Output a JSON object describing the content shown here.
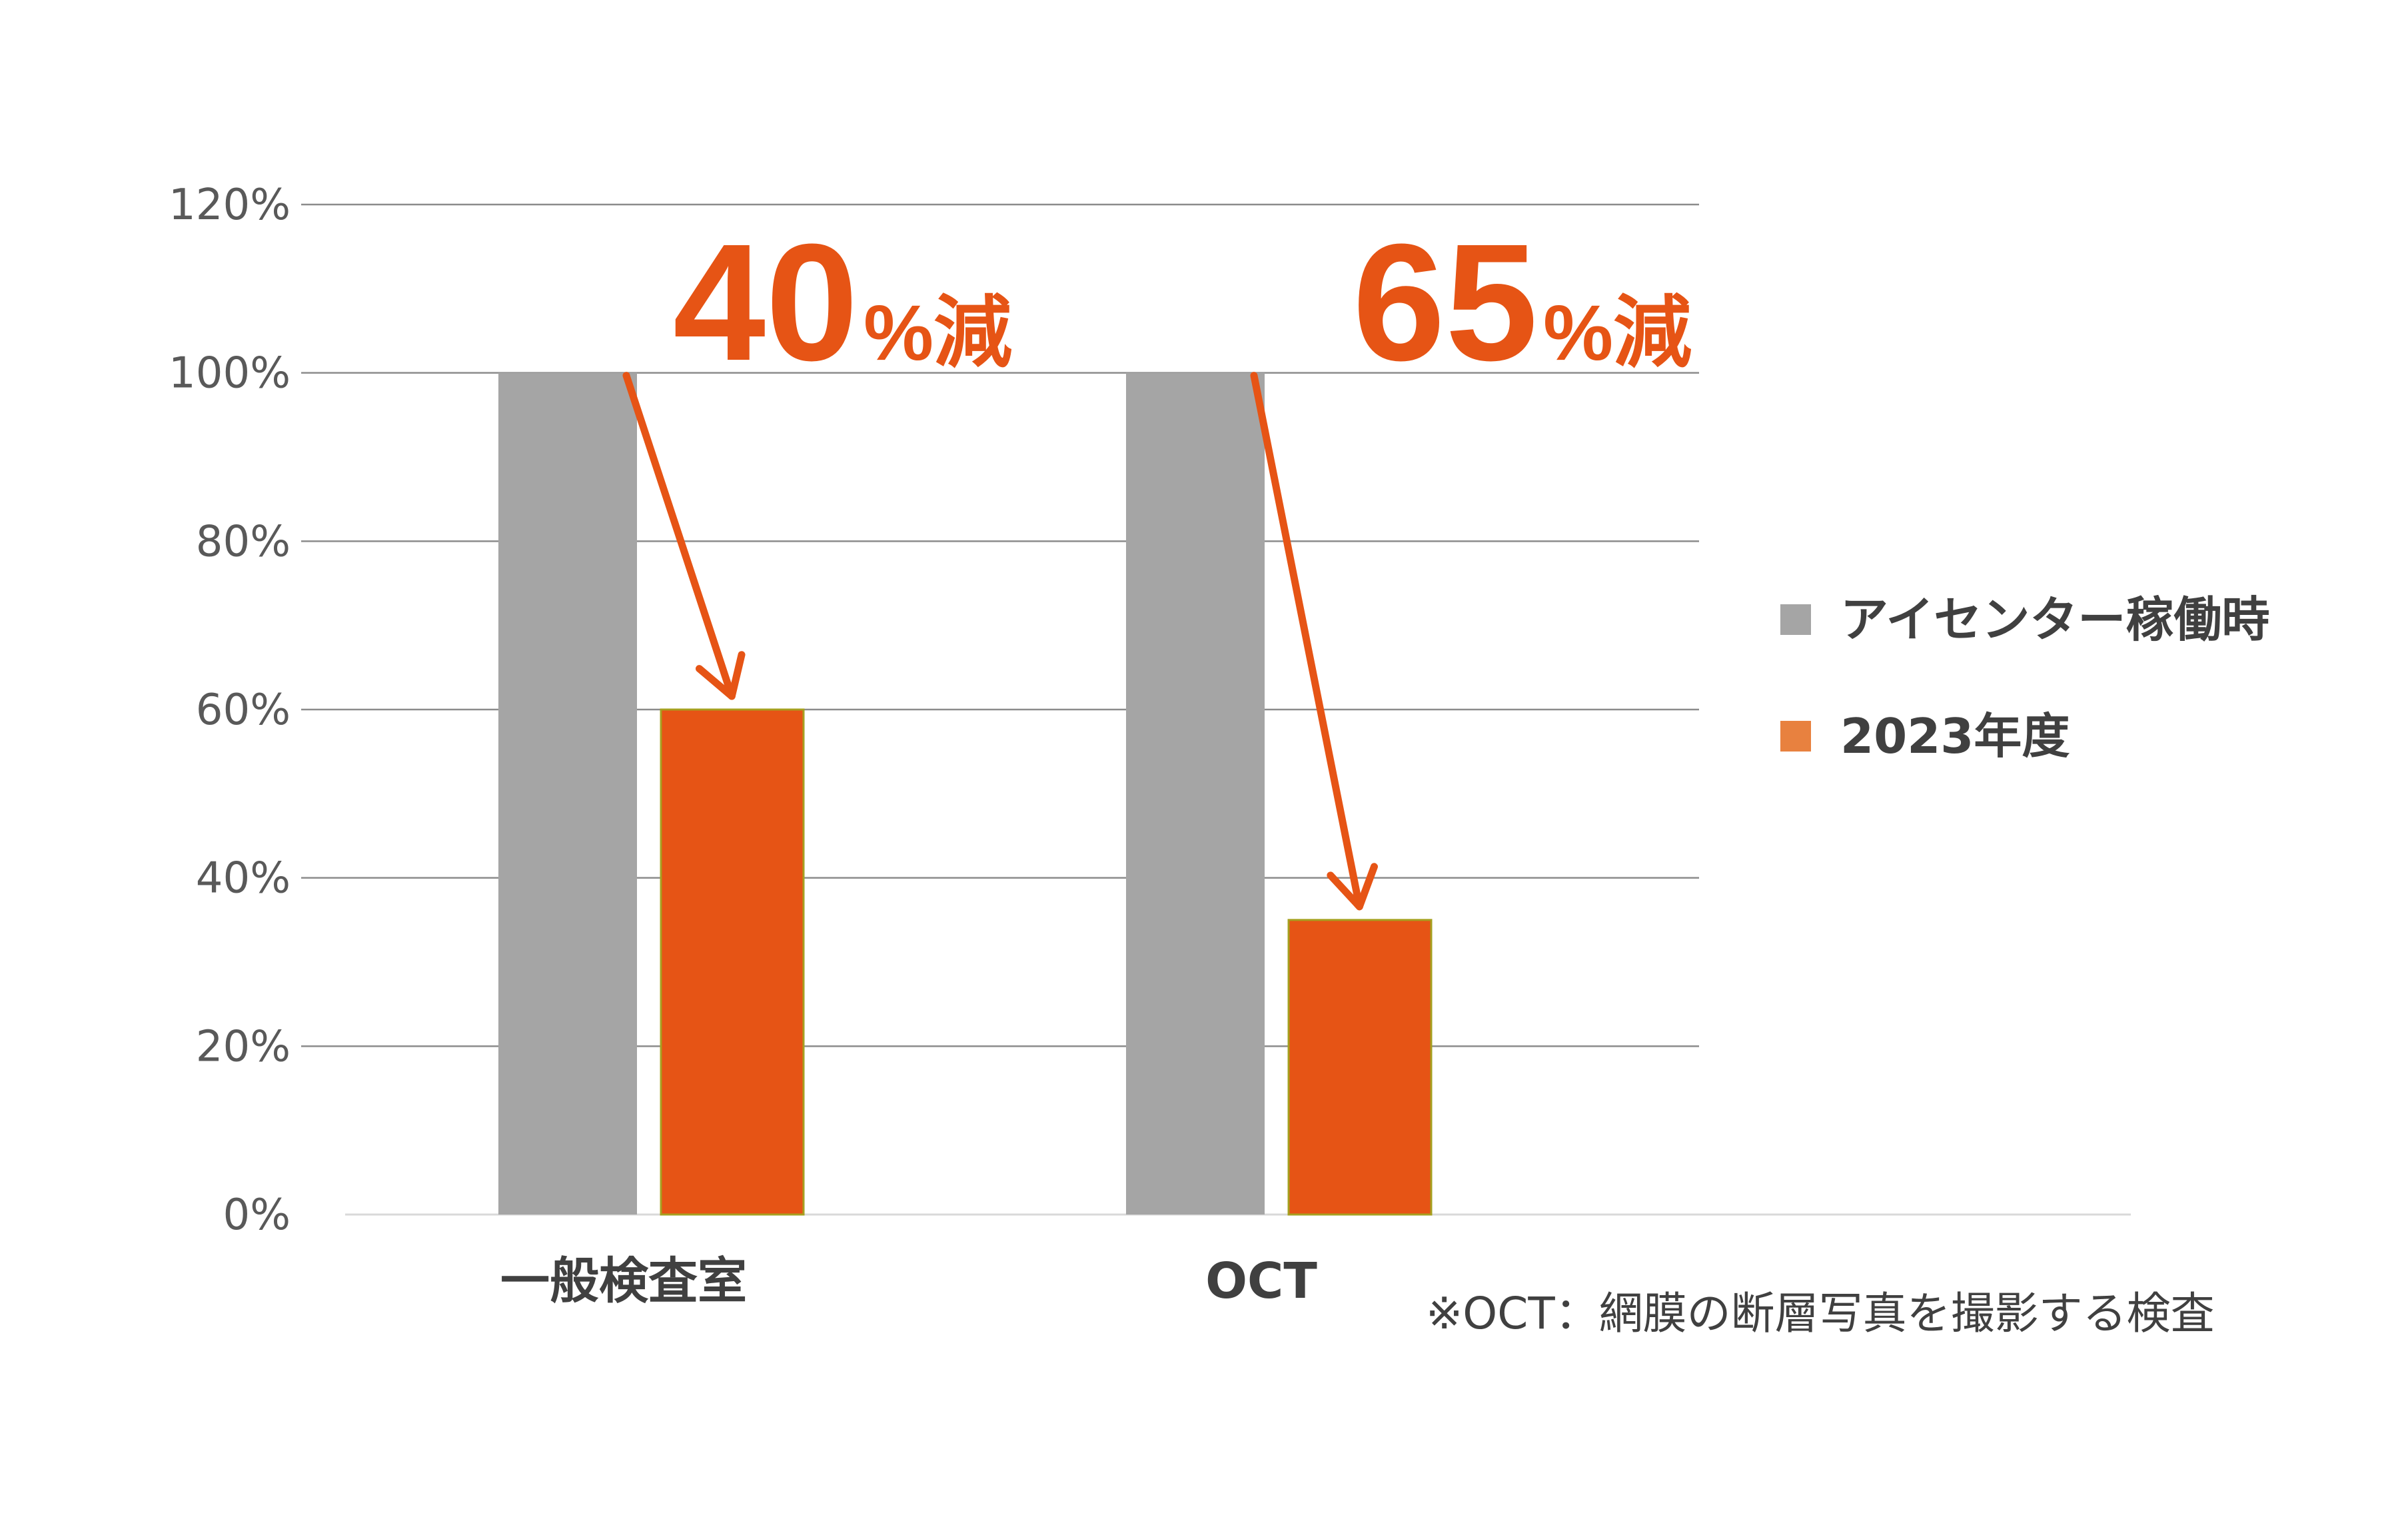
{
  "chart_data": {
    "type": "bar",
    "categories": [
      "一般検査室",
      "OCT"
    ],
    "series": [
      {
        "name": "アイセンター稼働時",
        "values": [
          100,
          100
        ],
        "color": "#a5a5a5"
      },
      {
        "name": "2023年度",
        "values": [
          60,
          35
        ],
        "color": "#e65415"
      }
    ],
    "ylim": [
      0,
      120
    ],
    "yticks": [
      0,
      20,
      40,
      60,
      80,
      100,
      120
    ],
    "ytick_labels": [
      "0%",
      "20%",
      "40%",
      "60%",
      "80%",
      "100%",
      "120%"
    ],
    "grid": true,
    "legend_position": "right",
    "annotations": [
      {
        "number": "40",
        "suffix": "%減",
        "category": "一般検査室"
      },
      {
        "number": "65",
        "suffix": "%減",
        "category": "OCT"
      }
    ],
    "arrow_color": "#e65415",
    "footnote": "※OCT：網膜の断層写真を撮影する検査"
  }
}
